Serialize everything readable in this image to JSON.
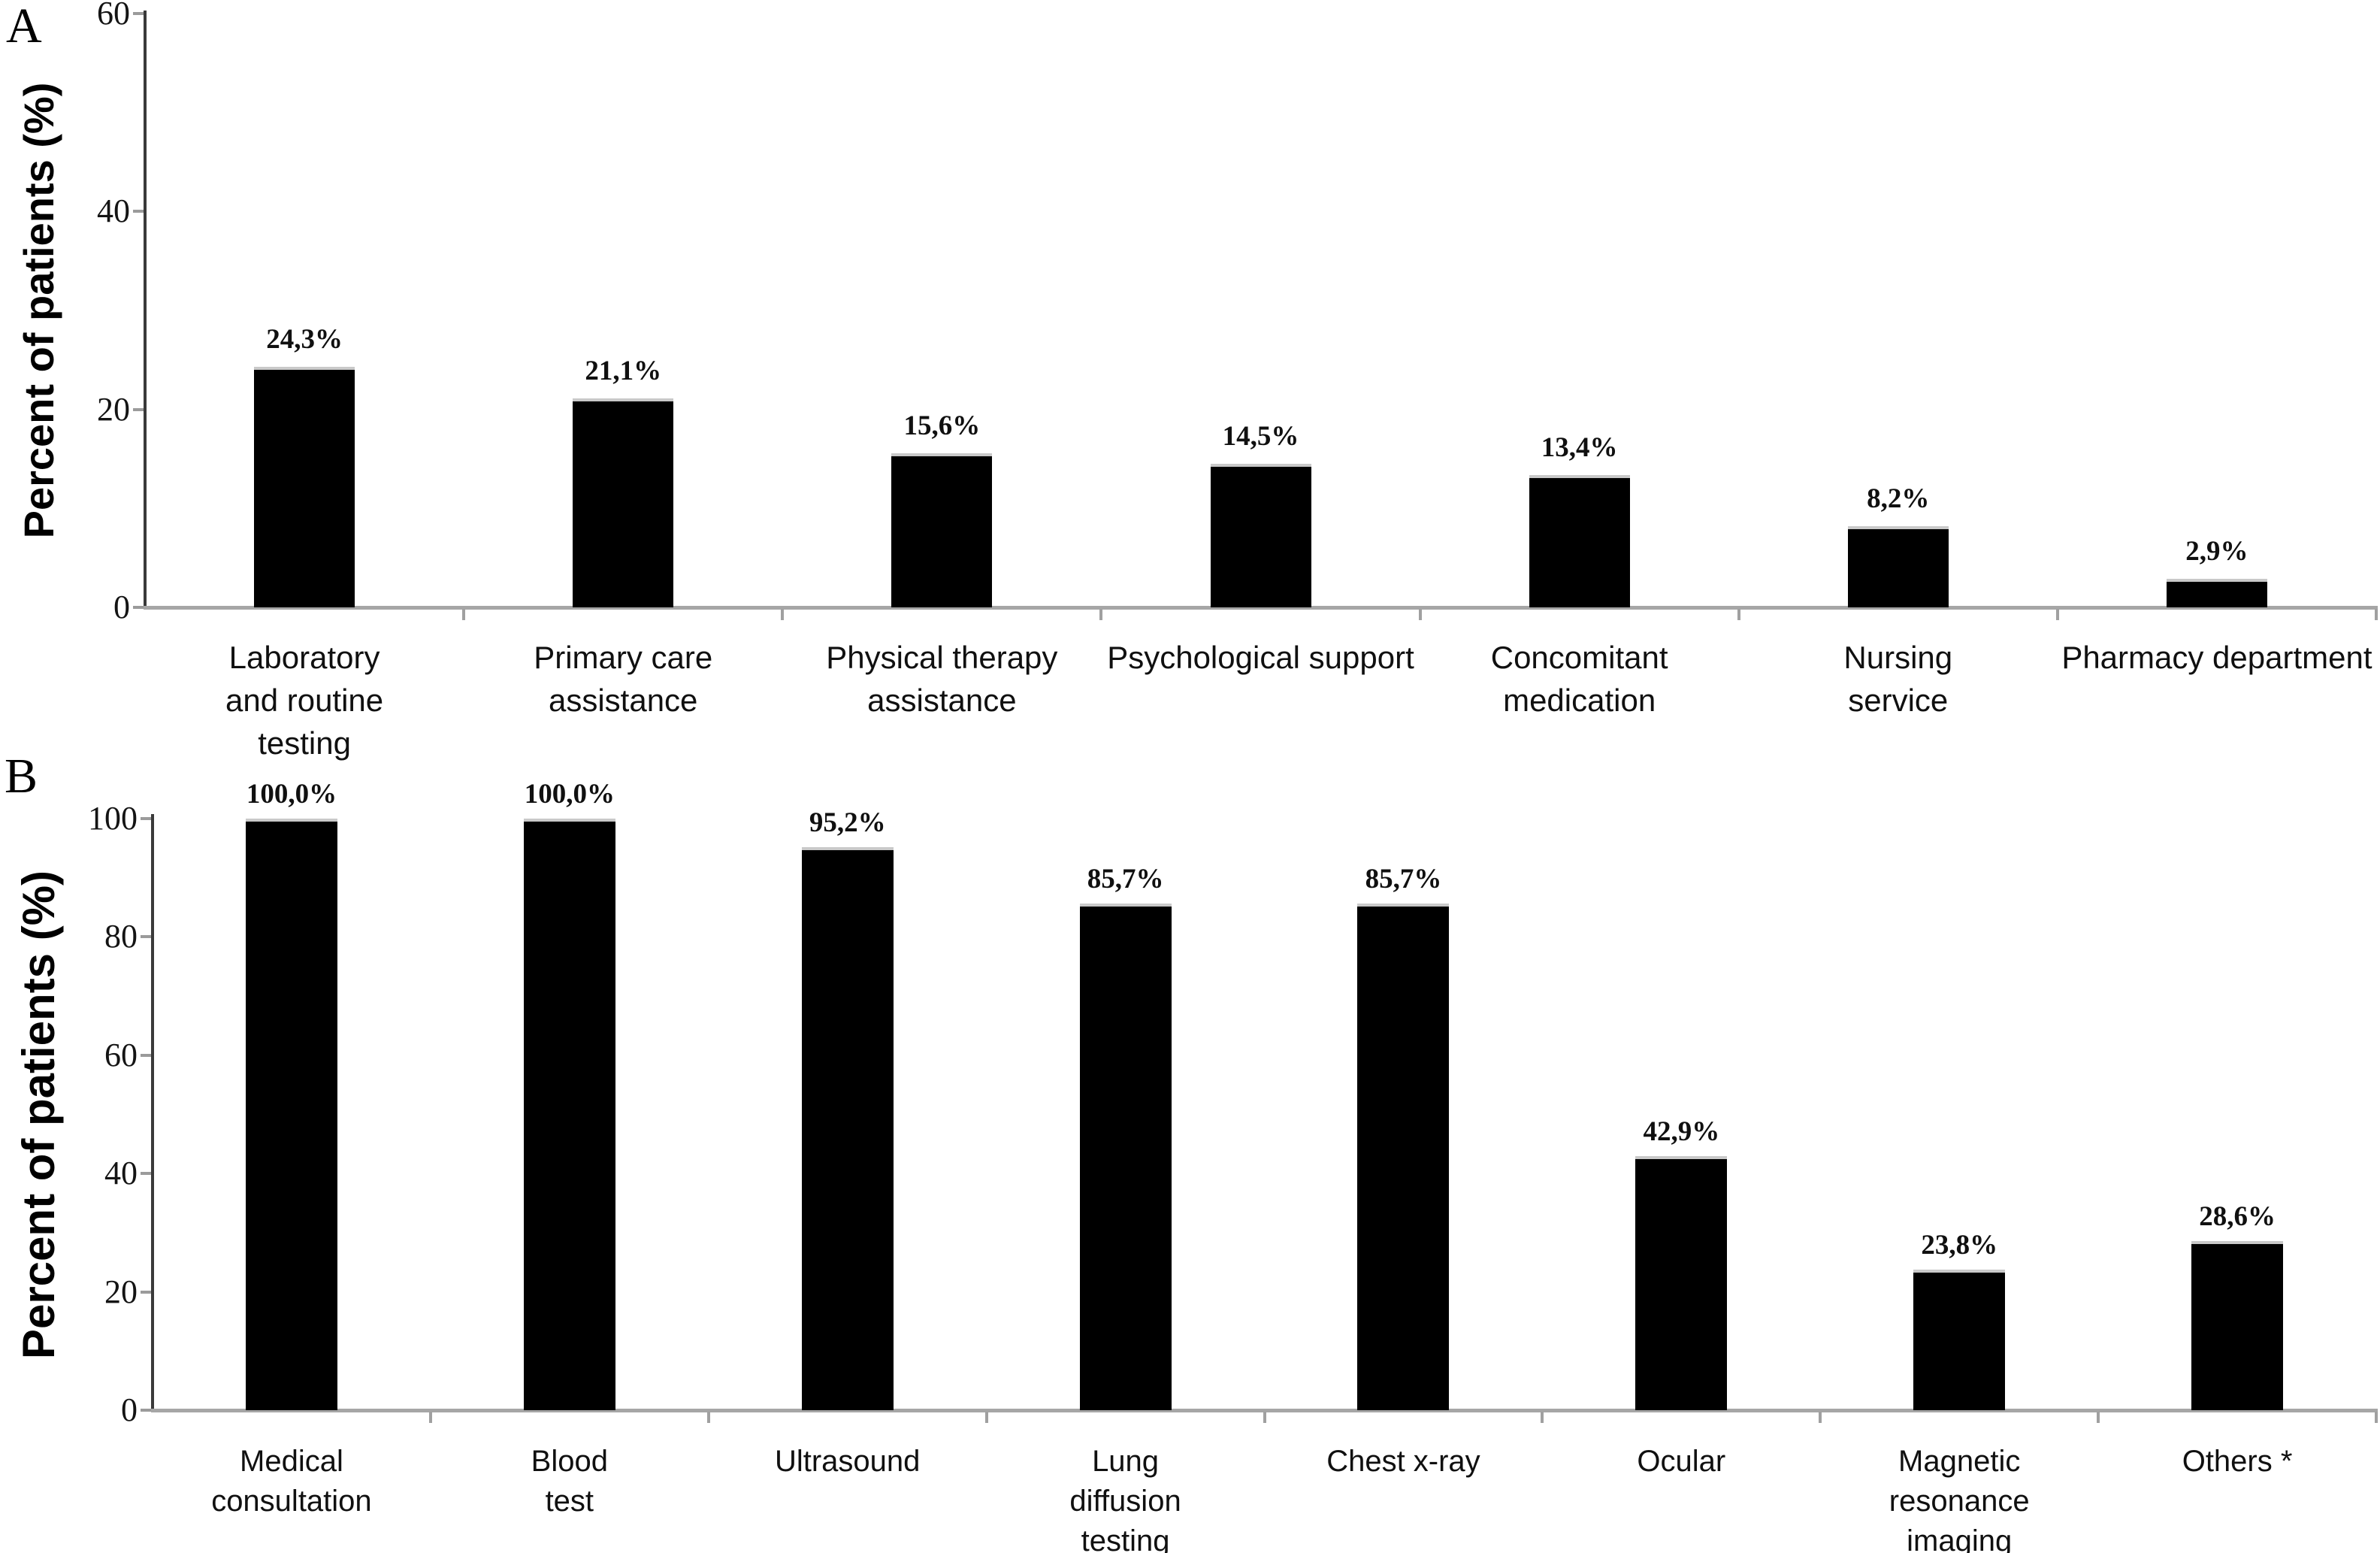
{
  "figure": {
    "background": "#ffffff",
    "bar_color": "#000000",
    "axis_line_color": "#3a3a3a",
    "baseline_color": "#a6a6a6"
  },
  "chart_data": [
    {
      "type": "bar",
      "panel_label": "A",
      "title": "",
      "xlabel": "",
      "ylabel": "Percent of patients (%)",
      "ylim": [
        0,
        60
      ],
      "yticks": [
        0,
        20,
        40,
        60
      ],
      "grid": false,
      "legend": null,
      "categories": [
        "Laboratory and routine testing",
        "Primary care assistance",
        "Physical therapy assistance",
        "Psychological support",
        "Concomitant medication",
        "Nursing service",
        "Pharmacy department"
      ],
      "category_lines": [
        [
          "Laboratory",
          "and routine",
          "testing"
        ],
        [
          "Primary care",
          "assistance"
        ],
        [
          "Physical therapy",
          "assistance"
        ],
        [
          "Psychological support"
        ],
        [
          "Concomitant",
          "medication"
        ],
        [
          "Nursing",
          "service"
        ],
        [
          "Pharmacy department"
        ]
      ],
      "values": [
        24.3,
        21.1,
        15.6,
        14.5,
        13.4,
        8.2,
        2.9
      ],
      "value_labels": [
        "24,3%",
        "21,1%",
        "15,6%",
        "14,5%",
        "13,4%",
        "8,2%",
        "2,9%"
      ],
      "bar_color": "#000000"
    },
    {
      "type": "bar",
      "panel_label": "B",
      "title": "",
      "xlabel": "",
      "ylabel": "Percent of patients (%)",
      "ylim": [
        0,
        100
      ],
      "yticks": [
        0,
        20,
        40,
        60,
        80,
        100
      ],
      "grid": false,
      "legend": null,
      "categories": [
        "Medical consultation",
        "Blood test",
        "Ultrasound",
        "Lung diffusion testing",
        "Chest x-ray",
        "Ocular",
        "Magnetic resonance imaging",
        "Others *"
      ],
      "category_lines": [
        [
          "Medical",
          "consultation"
        ],
        [
          "Blood",
          "test"
        ],
        [
          "Ultrasound"
        ],
        [
          "Lung",
          "diffusion",
          "testing"
        ],
        [
          "Chest x-ray"
        ],
        [
          "Ocular"
        ],
        [
          "Magnetic",
          "resonance",
          "imaging"
        ],
        [
          "Others *"
        ]
      ],
      "values": [
        100.0,
        100.0,
        95.2,
        85.7,
        85.7,
        42.9,
        23.8,
        28.6
      ],
      "value_labels": [
        "100,0%",
        "100,0%",
        "95,2%",
        "85,7%",
        "85,7%",
        "42,9%",
        "23,8%",
        "28,6%"
      ],
      "bar_color": "#000000"
    }
  ]
}
